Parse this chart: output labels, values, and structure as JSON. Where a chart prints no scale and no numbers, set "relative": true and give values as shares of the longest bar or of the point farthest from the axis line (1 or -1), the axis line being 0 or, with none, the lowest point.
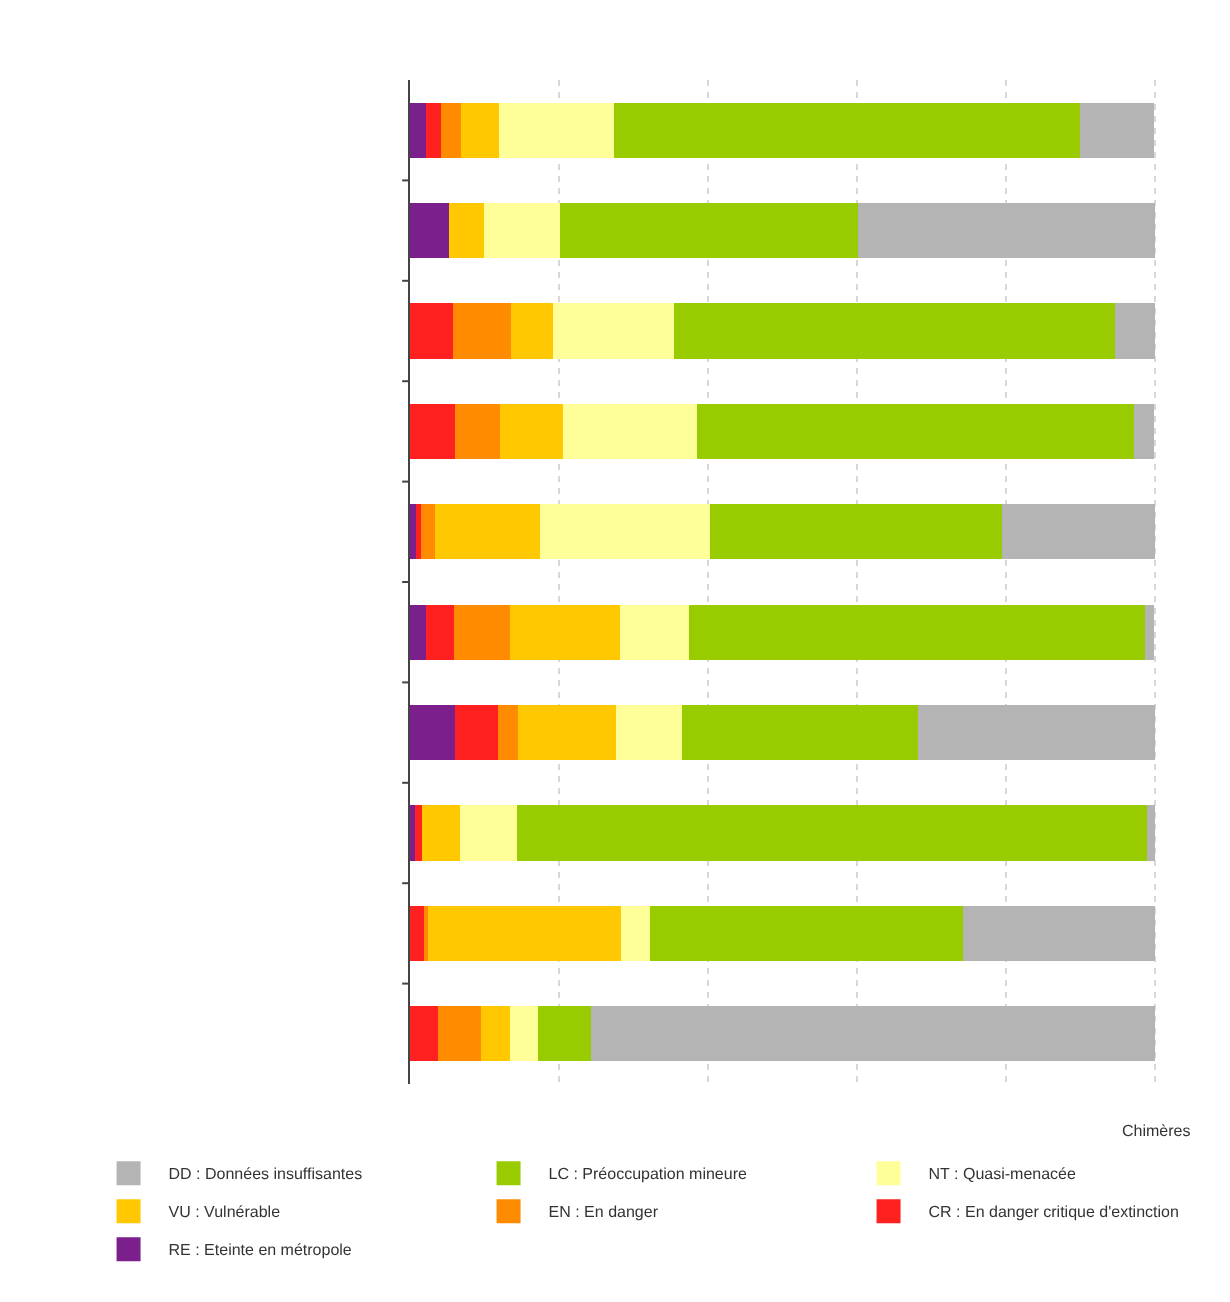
{
  "chart_data": {
    "type": "bar",
    "orientation": "horizontal",
    "stacked": true,
    "relative": true,
    "grid": "x",
    "legend": "bottom",
    "categories": [
      null,
      null,
      null,
      null,
      null,
      null,
      null,
      null,
      null,
      null
    ],
    "series": [
      {
        "name": "RE : Eteinte en métropole",
        "color": "#7b1f8c",
        "values": [
          0.021,
          0.053,
          0,
          0,
          0.01,
          0.021,
          0.06,
          0.007,
          0,
          0
        ]
      },
      {
        "name": "CR : En danger critique d'extinction",
        "color": "#ff2020",
        "values": [
          0.021,
          0,
          0.058,
          0.061,
          0.005,
          0.038,
          0.058,
          0.009,
          0.019,
          0.038
        ]
      },
      {
        "name": "EN : En danger",
        "color": "#ff8c00",
        "values": [
          0.027,
          0,
          0.077,
          0.06,
          0.019,
          0.075,
          0.027,
          0,
          0.005,
          0.057
        ]
      },
      {
        "name": "VU : Vulnérable",
        "color": "#ffc800",
        "values": [
          0.051,
          0.047,
          0.057,
          0.085,
          0.141,
          0.148,
          0.132,
          0.051,
          0.259,
          0.039
        ]
      },
      {
        "name": "NT : Quasi-menacée",
        "color": "#ffff99",
        "values": [
          0.154,
          0.101,
          0.162,
          0.179,
          0.228,
          0.092,
          0.088,
          0.077,
          0.039,
          0.038
        ]
      },
      {
        "name": "LC : Préoccupation mineure",
        "color": "#99cc00",
        "values": [
          0.625,
          0.401,
          0.593,
          0.587,
          0.392,
          0.613,
          0.317,
          0.846,
          0.42,
          0.071
        ]
      },
      {
        "name": "DD : Données insuffisantes",
        "color": "#b4b4b4",
        "values": [
          0.1,
          0.398,
          0.053,
          0.027,
          0.205,
          0.012,
          0.318,
          0.01,
          0.258,
          0.757
        ]
      }
    ],
    "annotations": [
      "Chimères"
    ]
  }
}
